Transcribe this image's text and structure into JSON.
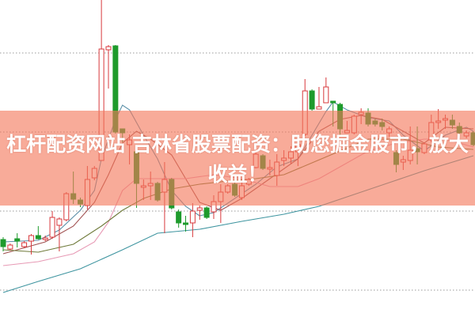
{
  "title": "杠杆配资网站 吉林省股票配资：助您掘金股市，放大收益！",
  "colors": {
    "up": "#d8383c",
    "down": "#1e9b2c",
    "grid": "#9a9a9a",
    "banner": "#f8a58e",
    "ma": [
      "#5b8fa8",
      "#a05050",
      "#e79ab5",
      "#6f7a3a",
      "#3f95a0"
    ]
  },
  "chart_data": {
    "type": "candlestick",
    "title": "",
    "xlabel": "",
    "ylabel": "",
    "grid": "horizontal dotted",
    "legend": "none",
    "ylim": [
      0,
      401
    ],
    "gridlines": [
      34,
      134,
      234,
      334
    ],
    "candles": [
      [
        98,
        101,
        83,
        89
      ],
      [
        86,
        93,
        84,
        91
      ],
      [
        99,
        106,
        88,
        96
      ],
      [
        89,
        96,
        87,
        94
      ],
      [
        96,
        105,
        79,
        103
      ],
      [
        103,
        115,
        98,
        99
      ],
      [
        98,
        103,
        96,
        100
      ],
      [
        101,
        134,
        99,
        126
      ],
      [
        116,
        126,
        83,
        124
      ],
      [
        123,
        158,
        121,
        156
      ],
      [
        156,
        184,
        143,
        149
      ],
      [
        148,
        151,
        139,
        143
      ],
      [
        141,
        191,
        136,
        174
      ],
      [
        176,
        191,
        173,
        188
      ],
      [
        198,
        401,
        198,
        339
      ],
      [
        338,
        344,
        289,
        342
      ],
      [
        343,
        344,
        232,
        234
      ],
      [
        238,
        238,
        221,
        233
      ],
      [
        218,
        231,
        193,
        224
      ],
      [
        209,
        211,
        138,
        169
      ],
      [
        164,
        174,
        148,
        166
      ],
      [
        166,
        184,
        148,
        169
      ],
      [
        169,
        171,
        146,
        148
      ],
      [
        158,
        196,
        106,
        174
      ],
      [
        174,
        176,
        136,
        138
      ],
      [
        133,
        136,
        113,
        119
      ],
      [
        119,
        128,
        108,
        117
      ],
      [
        119,
        144,
        101,
        134
      ],
      [
        135,
        141,
        123,
        138
      ],
      [
        138,
        140,
        124,
        126
      ],
      [
        133,
        154,
        124,
        146
      ],
      [
        146,
        168,
        119,
        158
      ],
      [
        158,
        168,
        156,
        166
      ],
      [
        168,
        170,
        152,
        154
      ],
      [
        151,
        171,
        148,
        166
      ],
      [
        168,
        176,
        166,
        174
      ],
      [
        189,
        211,
        188,
        206
      ],
      [
        204,
        206,
        186,
        188
      ],
      [
        187,
        199,
        179,
        189
      ],
      [
        179,
        206,
        166,
        196
      ],
      [
        198,
        211,
        191,
        201
      ],
      [
        201,
        216,
        194,
        209
      ],
      [
        209,
        221,
        191,
        218
      ],
      [
        231,
        301,
        229,
        286
      ],
      [
        286,
        288,
        261,
        263
      ],
      [
        263,
        291,
        263,
        266
      ],
      [
        271,
        303,
        271,
        291
      ],
      [
        273,
        273,
        241,
        271
      ],
      [
        269,
        271,
        228,
        238
      ],
      [
        233,
        248,
        233,
        236
      ],
      [
        233,
        256,
        231,
        254
      ],
      [
        256,
        264,
        244,
        259
      ],
      [
        258,
        264,
        241,
        244
      ],
      [
        248,
        251,
        241,
        244
      ],
      [
        246,
        251,
        236,
        241
      ],
      [
        233,
        241,
        228,
        238
      ],
      [
        208,
        211,
        183,
        193
      ],
      [
        196,
        204,
        186,
        199
      ],
      [
        198,
        241,
        193,
        211
      ],
      [
        213,
        241,
        193,
        209
      ],
      [
        208,
        221,
        206,
        219
      ],
      [
        224,
        256,
        221,
        246
      ],
      [
        246,
        263,
        238,
        248
      ],
      [
        249,
        256,
        238,
        251
      ],
      [
        249,
        256,
        238,
        243
      ],
      [
        241,
        246,
        231,
        233
      ],
      [
        229,
        236,
        226,
        233
      ],
      [
        233,
        235,
        216,
        218
      ]
    ],
    "moving_averages": [
      {
        "points": [
          [
            0,
            95
          ],
          [
            5,
            97
          ],
          [
            8,
            110
          ],
          [
            11,
            135
          ],
          [
            13,
            160
          ],
          [
            14,
            200
          ],
          [
            16,
            250
          ],
          [
            17,
            268
          ],
          [
            18,
            262
          ],
          [
            20,
            230
          ],
          [
            22,
            200
          ],
          [
            24,
            160
          ],
          [
            26,
            140
          ],
          [
            28,
            128
          ],
          [
            30,
            132
          ],
          [
            33,
            150
          ],
          [
            36,
            168
          ],
          [
            39,
            190
          ],
          [
            42,
            200
          ],
          [
            44,
            230
          ],
          [
            46,
            260
          ],
          [
            47,
            272
          ],
          [
            49,
            262
          ],
          [
            52,
            252
          ],
          [
            55,
            248
          ],
          [
            57,
            230
          ],
          [
            60,
            210
          ],
          [
            63,
            230
          ],
          [
            66,
            240
          ],
          [
            67,
            235
          ]
        ]
      },
      {
        "points": [
          [
            0,
            80
          ],
          [
            6,
            95
          ],
          [
            10,
            115
          ],
          [
            13,
            145
          ],
          [
            15,
            180
          ],
          [
            17,
            220
          ],
          [
            19,
            235
          ],
          [
            21,
            225
          ],
          [
            24,
            205
          ],
          [
            26,
            175
          ],
          [
            28,
            145
          ],
          [
            31,
            135
          ],
          [
            34,
            150
          ],
          [
            38,
            175
          ],
          [
            42,
            200
          ],
          [
            45,
            235
          ],
          [
            48,
            250
          ],
          [
            51,
            255
          ],
          [
            54,
            250
          ],
          [
            57,
            235
          ],
          [
            60,
            220
          ],
          [
            63,
            240
          ],
          [
            67,
            238
          ]
        ]
      },
      {
        "points": [
          [
            0,
            65
          ],
          [
            5,
            70
          ],
          [
            10,
            80
          ],
          [
            13,
            95
          ],
          [
            15,
            120
          ],
          [
            17,
            160
          ],
          [
            19,
            175
          ],
          [
            22,
            175
          ],
          [
            26,
            175
          ],
          [
            30,
            180
          ],
          [
            34,
            175
          ],
          [
            38,
            165
          ],
          [
            42,
            165
          ],
          [
            45,
            175
          ],
          [
            48,
            190
          ],
          [
            52,
            210
          ],
          [
            56,
            220
          ],
          [
            60,
            225
          ],
          [
            63,
            225
          ],
          [
            67,
            215
          ]
        ]
      },
      {
        "points": [
          [
            0,
            85
          ],
          [
            5,
            82
          ],
          [
            10,
            92
          ],
          [
            14,
            115
          ],
          [
            17,
            135
          ],
          [
            20,
            150
          ],
          [
            24,
            162
          ],
          [
            28,
            168
          ],
          [
            32,
            172
          ],
          [
            36,
            175
          ],
          [
            40,
            180
          ],
          [
            44,
            195
          ],
          [
            48,
            210
          ],
          [
            52,
            225
          ],
          [
            57,
            225
          ],
          [
            62,
            215
          ],
          [
            67,
            212
          ]
        ]
      },
      {
        "points": [
          [
            0,
            31
          ],
          [
            5,
            45
          ],
          [
            11,
            61
          ],
          [
            17,
            85
          ],
          [
            22,
            106
          ],
          [
            28,
            111
          ],
          [
            34,
            121
          ],
          [
            40,
            130
          ],
          [
            45,
            140
          ],
          [
            50,
            155
          ],
          [
            55,
            170
          ],
          [
            60,
            185
          ],
          [
            67,
            204
          ]
        ]
      }
    ]
  }
}
